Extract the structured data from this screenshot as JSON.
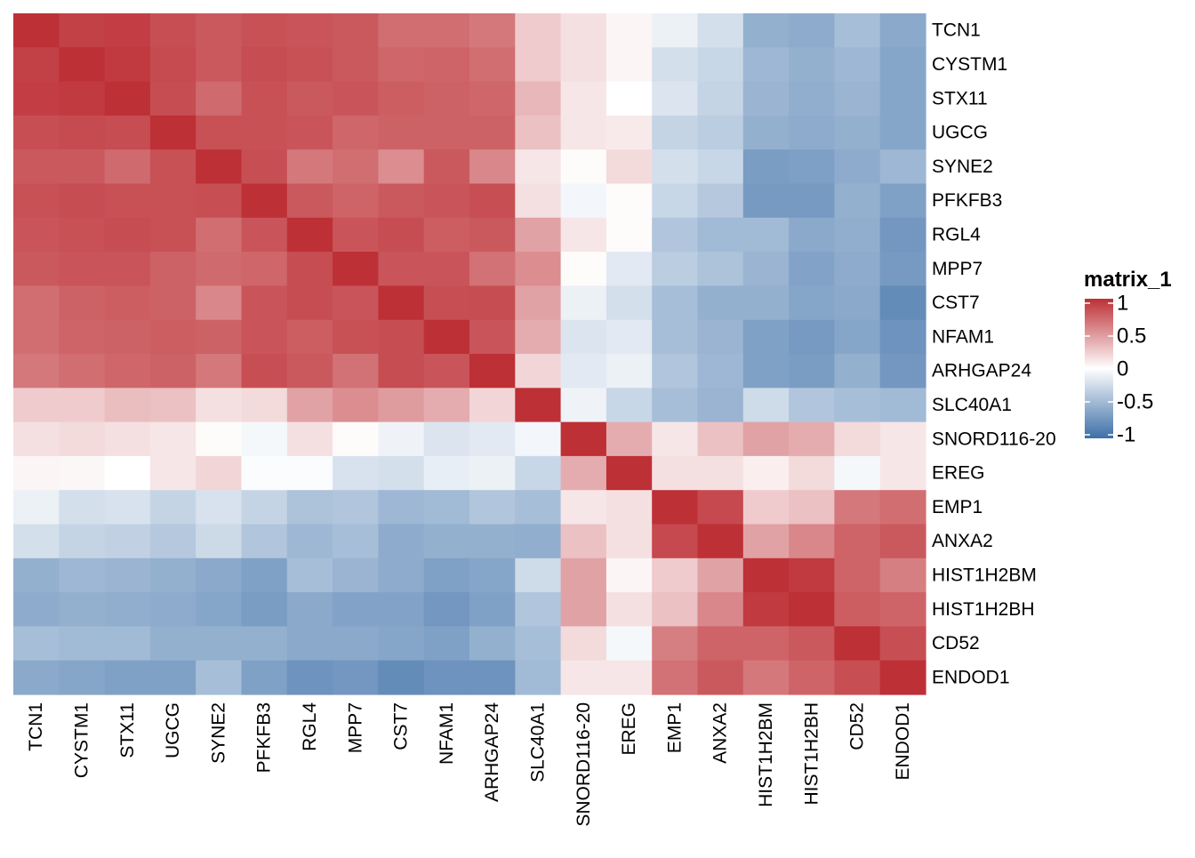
{
  "chart_data": {
    "type": "heatmap",
    "legend": {
      "title": "matrix_1",
      "ticks": [
        {
          "value": 1,
          "label": "1"
        },
        {
          "value": 0.5,
          "label": "0.5"
        },
        {
          "value": 0,
          "label": "0"
        },
        {
          "value": -0.5,
          "label": "-0.5"
        },
        {
          "value": -1,
          "label": "-1"
        }
      ],
      "range": [
        -1,
        1
      ],
      "colors": {
        "low": "#3C6FA8",
        "mid": "#FFFFFF",
        "high": "#BD3036"
      }
    },
    "rows": [
      "TCN1",
      "CYSTM1",
      "STX11",
      "UGCG",
      "SYNE2",
      "PFKFB3",
      "RGL4",
      "MPP7",
      "CST7",
      "NFAM1",
      "ARHGAP24",
      "SLC40A1",
      "SNORD116-20",
      "EREG",
      "EMP1",
      "ANXA2",
      "HIST1H2BM",
      "HIST1H2BH",
      "CD52",
      "ENDOD1"
    ],
    "columns": [
      "TCN1",
      "CYSTM1",
      "STX11",
      "UGCG",
      "SYNE2",
      "PFKFB3",
      "RGL4",
      "MPP7",
      "CST7",
      "NFAM1",
      "ARHGAP24",
      "SLC40A1",
      "SNORD116-20",
      "EREG",
      "EMP1",
      "ANXA2",
      "HIST1H2BM",
      "HIST1H2BH",
      "CD52",
      "ENDOD1"
    ],
    "values": [
      [
        1.0,
        0.92,
        0.93,
        0.85,
        0.8,
        0.84,
        0.82,
        0.8,
        0.7,
        0.7,
        0.65,
        0.25,
        0.15,
        0.05,
        -0.1,
        -0.22,
        -0.55,
        -0.58,
        -0.45,
        -0.6
      ],
      [
        0.92,
        1.0,
        0.95,
        0.87,
        0.8,
        0.86,
        0.84,
        0.8,
        0.74,
        0.75,
        0.7,
        0.25,
        0.15,
        0.05,
        -0.22,
        -0.28,
        -0.5,
        -0.55,
        -0.5,
        -0.62
      ],
      [
        0.93,
        0.95,
        1.0,
        0.86,
        0.72,
        0.84,
        0.8,
        0.82,
        0.78,
        0.76,
        0.74,
        0.35,
        0.12,
        0.0,
        -0.18,
        -0.3,
        -0.52,
        -0.56,
        -0.52,
        -0.62
      ],
      [
        0.85,
        0.87,
        0.86,
        1.0,
        0.84,
        0.84,
        0.82,
        0.74,
        0.76,
        0.76,
        0.76,
        0.3,
        0.12,
        0.1,
        -0.3,
        -0.35,
        -0.55,
        -0.58,
        -0.55,
        -0.62
      ],
      [
        0.8,
        0.8,
        0.72,
        0.84,
        1.0,
        0.85,
        0.65,
        0.7,
        0.55,
        0.8,
        0.58,
        0.12,
        0.02,
        0.18,
        -0.22,
        -0.28,
        -0.68,
        -0.66,
        -0.58,
        -0.5
      ],
      [
        0.84,
        0.86,
        0.84,
        0.84,
        0.85,
        1.0,
        0.8,
        0.75,
        0.8,
        0.82,
        0.85,
        0.15,
        -0.06,
        0.02,
        -0.28,
        -0.38,
        -0.7,
        -0.7,
        -0.55,
        -0.65
      ],
      [
        0.82,
        0.84,
        0.86,
        0.84,
        0.7,
        0.82,
        1.0,
        0.82,
        0.86,
        0.78,
        0.8,
        0.45,
        0.12,
        0.02,
        -0.4,
        -0.48,
        -0.48,
        -0.6,
        -0.56,
        -0.72
      ],
      [
        0.8,
        0.82,
        0.82,
        0.76,
        0.72,
        0.74,
        0.86,
        1.0,
        0.82,
        0.82,
        0.68,
        0.55,
        0.02,
        -0.15,
        -0.35,
        -0.42,
        -0.52,
        -0.64,
        -0.58,
        -0.7
      ],
      [
        0.7,
        0.76,
        0.78,
        0.76,
        0.58,
        0.82,
        0.86,
        0.82,
        1.0,
        0.85,
        0.86,
        0.45,
        -0.1,
        -0.22,
        -0.45,
        -0.55,
        -0.55,
        -0.62,
        -0.6,
        -0.8
      ],
      [
        0.7,
        0.75,
        0.76,
        0.78,
        0.76,
        0.82,
        0.78,
        0.84,
        0.86,
        1.0,
        0.82,
        0.4,
        -0.18,
        -0.15,
        -0.45,
        -0.52,
        -0.65,
        -0.7,
        -0.62,
        -0.75
      ],
      [
        0.65,
        0.7,
        0.74,
        0.76,
        0.65,
        0.85,
        0.8,
        0.68,
        0.86,
        0.82,
        1.0,
        0.2,
        -0.15,
        -0.1,
        -0.4,
        -0.5,
        -0.65,
        -0.68,
        -0.55,
        -0.72
      ],
      [
        0.25,
        0.25,
        0.32,
        0.3,
        0.15,
        0.18,
        0.45,
        0.55,
        0.48,
        0.4,
        0.2,
        1.0,
        -0.08,
        -0.28,
        -0.45,
        -0.52,
        -0.25,
        -0.4,
        -0.45,
        -0.48
      ],
      [
        0.15,
        0.18,
        0.15,
        0.12,
        0.02,
        -0.05,
        0.15,
        0.02,
        -0.08,
        -0.18,
        -0.15,
        -0.06,
        1.0,
        0.4,
        0.12,
        0.3,
        0.45,
        0.4,
        0.18,
        0.12
      ],
      [
        0.05,
        0.04,
        0.0,
        0.12,
        0.2,
        -0.02,
        -0.02,
        -0.2,
        -0.22,
        -0.12,
        -0.1,
        -0.28,
        0.4,
        1.0,
        0.15,
        0.15,
        0.08,
        0.18,
        -0.05,
        0.12
      ],
      [
        -0.1,
        -0.22,
        -0.2,
        -0.3,
        -0.2,
        -0.3,
        -0.42,
        -0.4,
        -0.5,
        -0.48,
        -0.4,
        -0.45,
        0.12,
        0.15,
        1.0,
        0.88,
        0.25,
        0.3,
        0.65,
        0.7
      ],
      [
        -0.22,
        -0.3,
        -0.32,
        -0.38,
        -0.26,
        -0.4,
        -0.5,
        -0.45,
        -0.58,
        -0.55,
        -0.55,
        -0.56,
        0.3,
        0.15,
        0.88,
        1.0,
        0.45,
        0.58,
        0.75,
        0.8
      ],
      [
        -0.55,
        -0.5,
        -0.52,
        -0.55,
        -0.6,
        -0.65,
        -0.45,
        -0.52,
        -0.58,
        -0.65,
        -0.62,
        -0.25,
        0.45,
        0.05,
        0.25,
        0.45,
        1.0,
        0.95,
        0.75,
        0.62
      ],
      [
        -0.58,
        -0.55,
        -0.56,
        -0.58,
        -0.62,
        -0.68,
        -0.6,
        -0.64,
        -0.64,
        -0.72,
        -0.65,
        -0.4,
        0.45,
        0.15,
        0.3,
        0.58,
        0.95,
        1.0,
        0.78,
        0.75
      ],
      [
        -0.45,
        -0.48,
        -0.48,
        -0.55,
        -0.55,
        -0.55,
        -0.6,
        -0.6,
        -0.62,
        -0.65,
        -0.55,
        -0.45,
        0.18,
        -0.05,
        0.62,
        0.75,
        0.75,
        0.8,
        1.0,
        0.85
      ],
      [
        -0.6,
        -0.62,
        -0.65,
        -0.65,
        -0.45,
        -0.65,
        -0.75,
        -0.72,
        -0.8,
        -0.75,
        -0.75,
        -0.48,
        0.12,
        0.12,
        0.68,
        0.8,
        0.65,
        0.75,
        0.85,
        1.0
      ]
    ]
  }
}
